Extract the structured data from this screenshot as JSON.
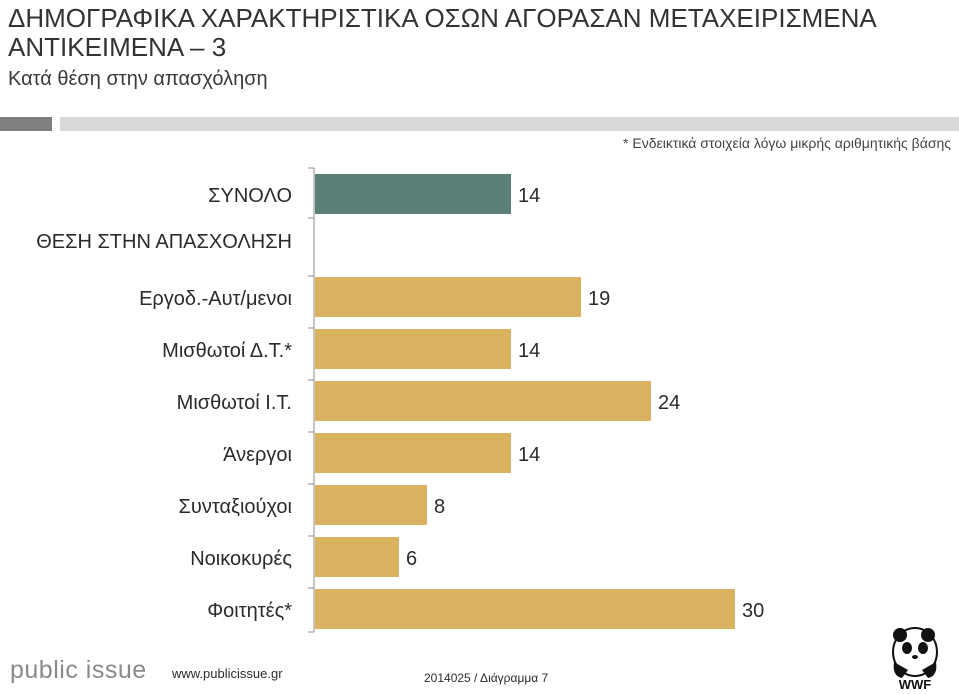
{
  "header": {
    "title_line1": "ΔΗΜΟΓΡΑΦΙΚΑ ΧΑΡΑΚΤΗΡΙΣΤΙΚΑ ΟΣΩΝ ΑΓΟΡΑΣΑΝ ΜΕΤΑΧΕΙΡΙΣΜΕΝΑ",
    "title_line2": "ΑΝΤΙΚΕΙΜΕΝΑ – 3",
    "subtitle": "Κατά θέση στην απασχόληση",
    "note": "* Ενδεικτικά στοιχεία λόγω μικρής αριθμητικής βάσης"
  },
  "chart_data": {
    "type": "bar",
    "orientation": "horizontal",
    "title": "",
    "section_label": "ΘΕΣΗ ΣΤΗΝ ΑΠΑΣΧΟΛΗΣΗ",
    "categories": [
      "ΣΥΝΟΛΟ",
      "Εργοδ.-Αυτ/μενοι",
      "Μισθωτοί Δ.Τ.*",
      "Μισθωτοί Ι.Τ.",
      "Άνεργοι",
      "Συνταξιούχοι",
      "Νοικοκυρές",
      "Φοιτητές*"
    ],
    "values": [
      14,
      19,
      14,
      24,
      14,
      8,
      6,
      30
    ],
    "value_labels": [
      "14",
      "19",
      "14",
      "24",
      "14",
      "8",
      "6",
      "30"
    ],
    "colors": [
      "#5a8078",
      "#d9b35f",
      "#d9b35f",
      "#d9b35f",
      "#d9b35f",
      "#d9b35f",
      "#d9b35f",
      "#d9b35f"
    ],
    "xlim": [
      0,
      30
    ],
    "grid": false
  },
  "footer": {
    "logo_text": "public issue",
    "url": "www.publicissue.gr",
    "code": "2014025 / Διάγραμμα 7",
    "wwf_text": "WWF"
  }
}
